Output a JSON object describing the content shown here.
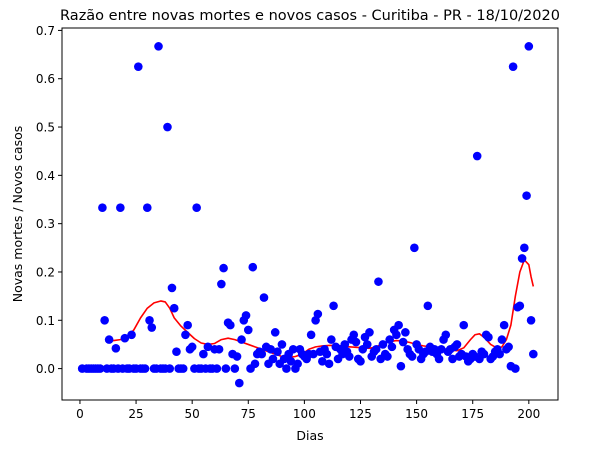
{
  "chart_data": {
    "type": "scatter",
    "title": "Razão entre novas mortes e novos casos - Curitiba - PR - 18/10/2020",
    "xlabel": "Dias",
    "ylabel": "Novas mortes / Novos casos",
    "xlim": [
      -8,
      213
    ],
    "ylim": [
      -0.065,
      0.705
    ],
    "xticks": [
      0,
      25,
      50,
      75,
      100,
      125,
      150,
      175,
      200
    ],
    "yticks": [
      0.0,
      0.1,
      0.2,
      0.3,
      0.4,
      0.5,
      0.6,
      0.7
    ],
    "ytick_labels": [
      "0.0",
      "0.1",
      "0.2",
      "0.3",
      "0.4",
      "0.5",
      "0.6",
      "0.7"
    ],
    "grid": false,
    "legend": false,
    "colors": {
      "points": "#0000ff",
      "trend": "#ff0000"
    },
    "series": [
      {
        "kind": "scatter",
        "points": [
          [
            1,
            0
          ],
          [
            3,
            0
          ],
          [
            4,
            0
          ],
          [
            5,
            0
          ],
          [
            6,
            0
          ],
          [
            7,
            0
          ],
          [
            8,
            0
          ],
          [
            9,
            0
          ],
          [
            10,
            0.333
          ],
          [
            11,
            0.1
          ],
          [
            12,
            0
          ],
          [
            13,
            0.06
          ],
          [
            14,
            0
          ],
          [
            15,
            0
          ],
          [
            16,
            0.042
          ],
          [
            17,
            0
          ],
          [
            18,
            0.333
          ],
          [
            19,
            0
          ],
          [
            20,
            0.063
          ],
          [
            21,
            0
          ],
          [
            22,
            0
          ],
          [
            23,
            0.07
          ],
          [
            24,
            0
          ],
          [
            25,
            0
          ],
          [
            26,
            0.625
          ],
          [
            27,
            0
          ],
          [
            28,
            0
          ],
          [
            29,
            0
          ],
          [
            30,
            0.333
          ],
          [
            31,
            0.1
          ],
          [
            32,
            0.085
          ],
          [
            33,
            0
          ],
          [
            34,
            0
          ],
          [
            35,
            0.667
          ],
          [
            36,
            0
          ],
          [
            37,
            0
          ],
          [
            38,
            0
          ],
          [
            39,
            0.5
          ],
          [
            40,
            0
          ],
          [
            41,
            0.167
          ],
          [
            42,
            0.125
          ],
          [
            43,
            0.035
          ],
          [
            44,
            0
          ],
          [
            45,
            0
          ],
          [
            46,
            0
          ],
          [
            47,
            0.07
          ],
          [
            48,
            0.09
          ],
          [
            49,
            0.04
          ],
          [
            50,
            0.045
          ],
          [
            51,
            0
          ],
          [
            52,
            0.333
          ],
          [
            53,
            0
          ],
          [
            54,
            0
          ],
          [
            55,
            0.03
          ],
          [
            56,
            0
          ],
          [
            57,
            0.045
          ],
          [
            58,
            0
          ],
          [
            59,
            0
          ],
          [
            60,
            0.04
          ],
          [
            61,
            0
          ],
          [
            62,
            0.04
          ],
          [
            63,
            0.175
          ],
          [
            64,
            0.208
          ],
          [
            65,
            0
          ],
          [
            66,
            0.095
          ],
          [
            67,
            0.09
          ],
          [
            68,
            0.03
          ],
          [
            69,
            0
          ],
          [
            70,
            0.025
          ],
          [
            71,
            -0.03
          ],
          [
            72,
            0.06
          ],
          [
            73,
            0.1
          ],
          [
            74,
            0.11
          ],
          [
            75,
            0.08
          ],
          [
            76,
            0
          ],
          [
            77,
            0.21
          ],
          [
            78,
            0.01
          ],
          [
            79,
            0.03
          ],
          [
            80,
            0.035
          ],
          [
            81,
            0.03
          ],
          [
            82,
            0.147
          ],
          [
            83,
            0.045
          ],
          [
            84,
            0.01
          ],
          [
            85,
            0.04
          ],
          [
            86,
            0.02
          ],
          [
            87,
            0.075
          ],
          [
            88,
            0.035
          ],
          [
            89,
            0.01
          ],
          [
            90,
            0.05
          ],
          [
            91,
            0.02
          ],
          [
            92,
            0
          ],
          [
            93,
            0.03
          ],
          [
            94,
            0.015
          ],
          [
            95,
            0.04
          ],
          [
            96,
            0
          ],
          [
            97,
            0.01
          ],
          [
            98,
            0.04
          ],
          [
            99,
            0.03
          ],
          [
            100,
            0.025
          ],
          [
            101,
            0.02
          ],
          [
            102,
            0.03
          ],
          [
            103,
            0.07
          ],
          [
            104,
            0.03
          ],
          [
            105,
            0.1
          ],
          [
            106,
            0.113
          ],
          [
            107,
            0.035
          ],
          [
            108,
            0.015
          ],
          [
            109,
            0.04
          ],
          [
            110,
            0.03
          ],
          [
            111,
            0.01
          ],
          [
            112,
            0.06
          ],
          [
            113,
            0.13
          ],
          [
            114,
            0.045
          ],
          [
            115,
            0.02
          ],
          [
            116,
            0.04
          ],
          [
            117,
            0.03
          ],
          [
            118,
            0.05
          ],
          [
            119,
            0.035
          ],
          [
            120,
            0.025
          ],
          [
            121,
            0.06
          ],
          [
            122,
            0.07
          ],
          [
            123,
            0.055
          ],
          [
            124,
            0.02
          ],
          [
            125,
            0.015
          ],
          [
            126,
            0.04
          ],
          [
            127,
            0.065
          ],
          [
            128,
            0.05
          ],
          [
            129,
            0.075
          ],
          [
            130,
            0.025
          ],
          [
            131,
            0.035
          ],
          [
            132,
            0.04
          ],
          [
            133,
            0.18
          ],
          [
            134,
            0.02
          ],
          [
            135,
            0.05
          ],
          [
            136,
            0.03
          ],
          [
            137,
            0.025
          ],
          [
            138,
            0.06
          ],
          [
            139,
            0.045
          ],
          [
            140,
            0.08
          ],
          [
            141,
            0.07
          ],
          [
            142,
            0.09
          ],
          [
            143,
            0.005
          ],
          [
            144,
            0.055
          ],
          [
            145,
            0.075
          ],
          [
            146,
            0.04
          ],
          [
            147,
            0.03
          ],
          [
            148,
            0.025
          ],
          [
            149,
            0.25
          ],
          [
            150,
            0.05
          ],
          [
            151,
            0.04
          ],
          [
            152,
            0.02
          ],
          [
            153,
            0.03
          ],
          [
            154,
            0.035
          ],
          [
            155,
            0.13
          ],
          [
            156,
            0.045
          ],
          [
            157,
            0.035
          ],
          [
            158,
            0.04
          ],
          [
            159,
            0.03
          ],
          [
            160,
            0.02
          ],
          [
            161,
            0.04
          ],
          [
            162,
            0.06
          ],
          [
            163,
            0.07
          ],
          [
            164,
            0.035
          ],
          [
            165,
            0.04
          ],
          [
            166,
            0.02
          ],
          [
            167,
            0.045
          ],
          [
            168,
            0.05
          ],
          [
            169,
            0.025
          ],
          [
            170,
            0.03
          ],
          [
            171,
            0.09
          ],
          [
            172,
            0.025
          ],
          [
            173,
            0.015
          ],
          [
            174,
            0.02
          ],
          [
            175,
            0.03
          ],
          [
            176,
            0.025
          ],
          [
            177,
            0.44
          ],
          [
            178,
            0.02
          ],
          [
            179,
            0.035
          ],
          [
            180,
            0.03
          ],
          [
            181,
            0.07
          ],
          [
            182,
            0.065
          ],
          [
            183,
            0.02
          ],
          [
            184,
            0.025
          ],
          [
            185,
            0.035
          ],
          [
            186,
            0.04
          ],
          [
            187,
            0.03
          ],
          [
            188,
            0.06
          ],
          [
            189,
            0.09
          ],
          [
            190,
            0.04
          ],
          [
            191,
            0.045
          ],
          [
            192,
            0.005
          ],
          [
            193,
            0.625
          ],
          [
            194,
            0
          ],
          [
            195,
            0.127
          ],
          [
            196,
            0.13
          ],
          [
            197,
            0.228
          ],
          [
            198,
            0.25
          ],
          [
            199,
            0.358
          ],
          [
            200,
            0.667
          ],
          [
            201,
            0.1
          ],
          [
            202,
            0.03
          ]
        ]
      },
      {
        "kind": "line",
        "points": [
          [
            12,
            0.06
          ],
          [
            15,
            0.058
          ],
          [
            18,
            0.06
          ],
          [
            21,
            0.065
          ],
          [
            24,
            0.08
          ],
          [
            27,
            0.105
          ],
          [
            30,
            0.125
          ],
          [
            33,
            0.136
          ],
          [
            36,
            0.14
          ],
          [
            38,
            0.138
          ],
          [
            40,
            0.125
          ],
          [
            42,
            0.105
          ],
          [
            45,
            0.088
          ],
          [
            48,
            0.075
          ],
          [
            51,
            0.062
          ],
          [
            54,
            0.053
          ],
          [
            57,
            0.05
          ],
          [
            60,
            0.052
          ],
          [
            63,
            0.06
          ],
          [
            66,
            0.063
          ],
          [
            69,
            0.06
          ],
          [
            72,
            0.055
          ],
          [
            75,
            0.05
          ],
          [
            78,
            0.045
          ],
          [
            81,
            0.04
          ],
          [
            84,
            0.035
          ],
          [
            87,
            0.03
          ],
          [
            90,
            0.025
          ],
          [
            93,
            0.023
          ],
          [
            96,
            0.025
          ],
          [
            99,
            0.03
          ],
          [
            102,
            0.04
          ],
          [
            105,
            0.045
          ],
          [
            108,
            0.047
          ],
          [
            111,
            0.048
          ],
          [
            114,
            0.048
          ],
          [
            117,
            0.047
          ],
          [
            120,
            0.045
          ],
          [
            123,
            0.044
          ],
          [
            126,
            0.043
          ],
          [
            129,
            0.042
          ],
          [
            132,
            0.045
          ],
          [
            135,
            0.052
          ],
          [
            138,
            0.056
          ],
          [
            141,
            0.058
          ],
          [
            144,
            0.057
          ],
          [
            147,
            0.054
          ],
          [
            150,
            0.05
          ],
          [
            153,
            0.047
          ],
          [
            156,
            0.045
          ],
          [
            159,
            0.042
          ],
          [
            162,
            0.04
          ],
          [
            165,
            0.038
          ],
          [
            168,
            0.037
          ],
          [
            171,
            0.043
          ],
          [
            174,
            0.06
          ],
          [
            176,
            0.07
          ],
          [
            178,
            0.072
          ],
          [
            180,
            0.065
          ],
          [
            183,
            0.05
          ],
          [
            186,
            0.042
          ],
          [
            188,
            0.045
          ],
          [
            190,
            0.06
          ],
          [
            192,
            0.09
          ],
          [
            194,
            0.15
          ],
          [
            196,
            0.2
          ],
          [
            198,
            0.225
          ],
          [
            200,
            0.215
          ],
          [
            201,
            0.19
          ],
          [
            202,
            0.17
          ]
        ]
      }
    ]
  }
}
